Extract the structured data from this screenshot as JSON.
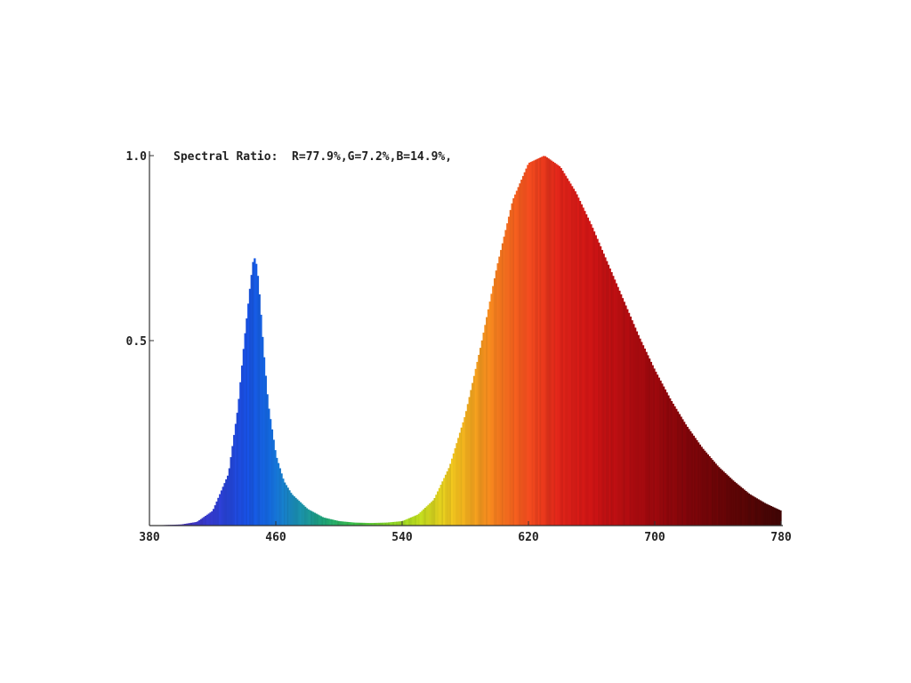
{
  "chart_data": {
    "type": "area",
    "title": "Spectral Ratio:  R=77.9%,G=7.2%,B=14.9%,",
    "xlabel": "",
    "ylabel": "",
    "xlim": [
      380,
      780
    ],
    "ylim": [
      0,
      1.0
    ],
    "x_ticks": [
      "380",
      "460",
      "540",
      "620",
      "700",
      "780"
    ],
    "y_ticks": [
      "0.5",
      "1.0"
    ],
    "grid": false,
    "colored_by_wavelength": true,
    "x": [
      380,
      400,
      410,
      420,
      430,
      436,
      440,
      444,
      446,
      448,
      450,
      452,
      455,
      460,
      465,
      470,
      480,
      490,
      500,
      510,
      520,
      530,
      540,
      550,
      560,
      570,
      580,
      590,
      600,
      610,
      620,
      630,
      640,
      650,
      660,
      670,
      680,
      690,
      700,
      710,
      720,
      730,
      740,
      750,
      760,
      770,
      780
    ],
    "values": [
      0.0,
      0.003,
      0.01,
      0.04,
      0.14,
      0.32,
      0.5,
      0.66,
      0.73,
      0.7,
      0.6,
      0.48,
      0.33,
      0.19,
      0.12,
      0.085,
      0.045,
      0.022,
      0.012,
      0.008,
      0.007,
      0.008,
      0.012,
      0.03,
      0.07,
      0.16,
      0.3,
      0.49,
      0.7,
      0.88,
      0.98,
      1.0,
      0.97,
      0.9,
      0.81,
      0.71,
      0.61,
      0.51,
      0.42,
      0.34,
      0.27,
      0.21,
      0.16,
      0.12,
      0.085,
      0.06,
      0.04
    ]
  }
}
